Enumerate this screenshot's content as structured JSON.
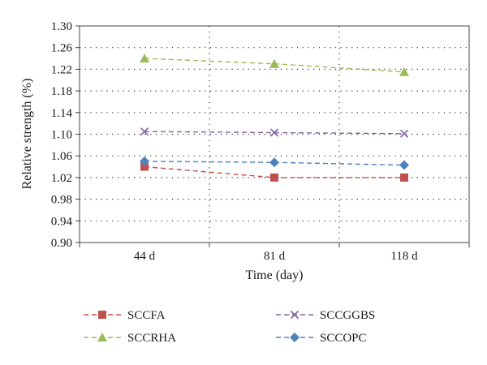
{
  "chart_data": {
    "type": "line",
    "xlabel": "Time (day)",
    "ylabel": "Relative strength (%)",
    "categories": [
      "44 d",
      "81 d",
      "118 d"
    ],
    "ylim": [
      0.9,
      1.3
    ],
    "ytick_step": 0.04,
    "yticks": [
      "0.90",
      "0.94",
      "0.98",
      "1.02",
      "1.06",
      "1.10",
      "1.14",
      "1.18",
      "1.22",
      "1.26",
      "1.30"
    ],
    "grid": true,
    "legend_position": "bottom",
    "series": [
      {
        "name": "SCCFA",
        "marker": "square",
        "color": "#c0504d",
        "values": [
          1.04,
          1.02,
          1.02
        ]
      },
      {
        "name": "SCCRHA",
        "marker": "triangle",
        "color": "#9bbb59",
        "values": [
          1.24,
          1.23,
          1.215
        ]
      },
      {
        "name": "SCCGGBS",
        "marker": "x",
        "color": "#8064a2",
        "values": [
          1.105,
          1.103,
          1.101
        ]
      },
      {
        "name": "SCCOPC",
        "marker": "diamond",
        "color": "#4f81bd",
        "values": [
          1.05,
          1.048,
          1.043
        ]
      }
    ]
  }
}
